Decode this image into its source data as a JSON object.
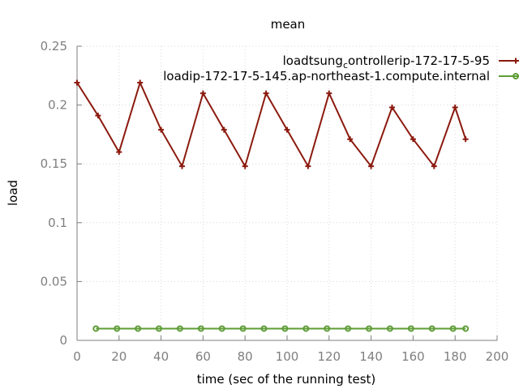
{
  "chart_data": {
    "type": "line",
    "title": "mean",
    "xlabel": "time (sec of the running test)",
    "ylabel": "load",
    "xlim": [
      0,
      200
    ],
    "ylim": [
      0,
      0.25
    ],
    "x_ticks": [
      "0",
      "20",
      "40",
      "60",
      "80",
      "100",
      "120",
      "140",
      "160",
      "180",
      "200"
    ],
    "y_ticks": [
      "0",
      "0.05",
      "0.1",
      "0.15",
      "0.2",
      "0.25"
    ],
    "grid": true,
    "legend_position": "top-right",
    "series": [
      {
        "name": "loadtsung_controllerip-172-17-5-95",
        "color": "#8b1a0e",
        "marker": "plus",
        "x": [
          0,
          10,
          20,
          30,
          40,
          50,
          60,
          70,
          80,
          90,
          100,
          110,
          120,
          130,
          140,
          150,
          160,
          170,
          180,
          185
        ],
        "y": [
          0.219,
          0.191,
          0.16,
          0.219,
          0.179,
          0.148,
          0.21,
          0.179,
          0.148,
          0.21,
          0.179,
          0.148,
          0.21,
          0.171,
          0.148,
          0.198,
          0.171,
          0.148,
          0.198,
          0.171
        ]
      },
      {
        "name": "loadip-172-17-5-145.ap-northeast-1.compute.internal",
        "color": "#5e9c36",
        "marker": "circle",
        "x": [
          9,
          19,
          29,
          39,
          49,
          59,
          69,
          79,
          89,
          99,
          109,
          119,
          129,
          139,
          149,
          159,
          169,
          179,
          185
        ],
        "y": [
          0.01,
          0.01,
          0.01,
          0.01,
          0.01,
          0.01,
          0.01,
          0.01,
          0.01,
          0.01,
          0.01,
          0.01,
          0.01,
          0.01,
          0.01,
          0.01,
          0.01,
          0.01,
          0.01
        ]
      }
    ]
  },
  "legend": {
    "entry1_prefix": "loadtsung",
    "entry1_sub": "c",
    "entry1_suffix": "ontrollerip-172-17-5-95",
    "entry2_label": "loadip-172-17-5-145.ap-northeast-1.compute.internal"
  }
}
